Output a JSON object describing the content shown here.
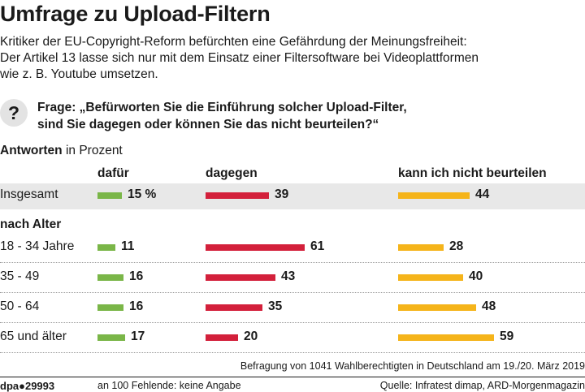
{
  "title": "Umfrage zu Upload-Filtern",
  "intro": [
    "Kritiker der EU-Copyright-Reform befürchten eine Gefährdung der Meinungsfreiheit:",
    "Der Artikel 13 lasse sich nur mit dem Einsatz einer Filtersoftware bei Videoplattformen",
    "wie z. B. Youtube umsetzen."
  ],
  "question_icon": "?",
  "question": [
    "Frage: „Befürworten Sie die Einführung solcher Upload-Filter,",
    "sind Sie dagegen oder können Sie das nicht beurteilen?“"
  ],
  "answers_label": "Antworten",
  "answers_unit": "in Prozent",
  "section_label": "nach Alter",
  "colors": {
    "dafuer": "#7ab648",
    "dagegen": "#d3203b",
    "kann_nicht": "#f5b41a",
    "band": "#e8e8e8"
  },
  "chart_data": {
    "type": "bar",
    "orientation": "horizontal",
    "title": "Umfrage zu Upload-Filtern",
    "categories": [
      "Insgesamt",
      "18 - 34 Jahre",
      "35 - 49",
      "50 - 64",
      "65 und älter"
    ],
    "series": [
      {
        "name": "dafür",
        "values": [
          15,
          11,
          16,
          16,
          17
        ],
        "labels": [
          "15 %",
          "11",
          "16",
          "16",
          "17"
        ]
      },
      {
        "name": "dagegen",
        "values": [
          39,
          61,
          43,
          35,
          20
        ],
        "labels": [
          "39",
          "61",
          "43",
          "35",
          "20"
        ]
      },
      {
        "name": "kann ich nicht beurteilen",
        "values": [
          44,
          28,
          40,
          48,
          59
        ],
        "labels": [
          "44",
          "28",
          "40",
          "48",
          "59"
        ]
      }
    ]
  },
  "footer": {
    "source_line": "Befragung von 1041 Wahlberechtigten in Deutschland am 19./20. März 2019",
    "id": "dpa●29993",
    "note": "an 100 Fehlende: keine Angabe",
    "quelle": "Quelle: Infratest dimap, ARD-Morgenmagazin"
  }
}
